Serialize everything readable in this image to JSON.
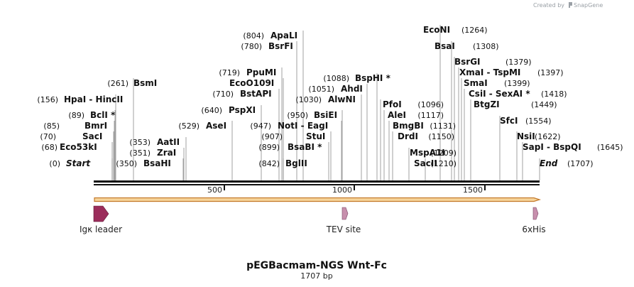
{
  "title": "pEGBacmam-NGS Wnt-Fc",
  "length_label": "1707 bp",
  "sequence_length": 1707,
  "watermark": {
    "prefix": "Created by",
    "brand": "SnapGene"
  },
  "axis_ticks": [
    "500",
    "1000",
    "1500"
  ],
  "colors": {
    "feature_signal": "#9b2d5b",
    "feature_site": "#c78fad",
    "orf_fill": "#f6d49a",
    "orf_stroke": "#c47a2c",
    "backbone": "#111111",
    "leader_line": "#8a8a8a"
  },
  "sites": [
    {
      "pos": "(0)",
      "name": "Start",
      "suffix": "",
      "kind": "end"
    },
    {
      "pos": "(68)",
      "name": "Eco53kI",
      "suffix": ""
    },
    {
      "pos": "(70)",
      "name": "SacI",
      "suffix": ""
    },
    {
      "pos": "(85)",
      "name": "BmrI",
      "suffix": ""
    },
    {
      "pos": "(89)",
      "name": "BclI",
      "suffix": " *"
    },
    {
      "pos": "(156)",
      "name": "HpaI",
      "suffix": " - HincII"
    },
    {
      "pos": "(261)",
      "name": "BsmI",
      "suffix": ""
    },
    {
      "pos": "(350)",
      "name": "BsaHI",
      "suffix": ""
    },
    {
      "pos": "(351)",
      "name": "ZraI",
      "suffix": ""
    },
    {
      "pos": "(353)",
      "name": "AatII",
      "suffix": ""
    },
    {
      "pos": "(529)",
      "name": "AseI",
      "suffix": ""
    },
    {
      "pos": "(640)",
      "name": "PspXI",
      "suffix": ""
    },
    {
      "pos": "(710)",
      "name": "BstAPI",
      "suffix": ""
    },
    {
      "pos": "(719)",
      "name": "PpuMI",
      "suffix": ""
    },
    {
      "pos": "",
      "name": "EcoO109I",
      "suffix": ""
    },
    {
      "pos": "(780)",
      "name": "BsrFI",
      "suffix": ""
    },
    {
      "pos": "(804)",
      "name": "ApaLI",
      "suffix": ""
    },
    {
      "pos": "(842)",
      "name": "BglII",
      "suffix": ""
    },
    {
      "pos": "(899)",
      "name": "BsaBI",
      "suffix": " *"
    },
    {
      "pos": "(907)",
      "name": "StuI",
      "suffix": ""
    },
    {
      "pos": "(947)",
      "name": "NotI",
      "suffix": " - EagI"
    },
    {
      "pos": "(950)",
      "name": "BsiEI",
      "suffix": ""
    },
    {
      "pos": "(1030)",
      "name": "AlwNI",
      "suffix": ""
    },
    {
      "pos": "(1051)",
      "name": "AhdI",
      "suffix": ""
    },
    {
      "pos": "(1088)",
      "name": "BspHI",
      "suffix": " *"
    },
    {
      "pos": "",
      "name": "PfoI",
      "suffix": ""
    },
    {
      "pos": "",
      "name": "AleI",
      "suffix": ""
    },
    {
      "pos": "",
      "name": "BmgBI",
      "suffix": ""
    },
    {
      "pos": "",
      "name": "DrdI",
      "suffix": ""
    },
    {
      "pos": "",
      "name": "MspA1I",
      "suffix": ""
    },
    {
      "pos": "",
      "name": "SacII",
      "suffix": ""
    },
    {
      "pos": "(1096)",
      "name": "",
      "suffix": ""
    },
    {
      "pos": "(1117)",
      "name": "",
      "suffix": ""
    },
    {
      "pos": "(1131)",
      "name": "",
      "suffix": ""
    },
    {
      "pos": "(1150)",
      "name": "",
      "suffix": ""
    },
    {
      "pos": "(1209)",
      "name": "",
      "suffix": ""
    },
    {
      "pos": "(1210)",
      "name": "",
      "suffix": ""
    },
    {
      "pos": "(1264)",
      "name": "EcoNI",
      "suffix": ""
    },
    {
      "pos": "(1308)",
      "name": "BsaI",
      "suffix": ""
    },
    {
      "pos": "(1379)",
      "name": "BsrGI",
      "suffix": ""
    },
    {
      "pos": "(1397)",
      "name": "XmaI",
      "suffix": " - TspMI"
    },
    {
      "pos": "(1399)",
      "name": "SmaI",
      "suffix": ""
    },
    {
      "pos": "(1418)",
      "name": "CsiI",
      "suffix": " - SexAI *"
    },
    {
      "pos": "(1449)",
      "name": "BtgZI",
      "suffix": ""
    },
    {
      "pos": "(1554)",
      "name": "SfcI",
      "suffix": ""
    },
    {
      "pos": "(1622)",
      "name": "NsiI",
      "suffix": ""
    },
    {
      "pos": "(1645)",
      "name": "SapI",
      "suffix": " - BspQI"
    },
    {
      "pos": "(1707)",
      "name": "End",
      "suffix": "",
      "kind": "end"
    }
  ],
  "features": [
    {
      "name": "Igκ leader",
      "type": "signal",
      "start": 1,
      "end": 60
    },
    {
      "name": "TEV site",
      "type": "site",
      "start": 956,
      "end": 976
    },
    {
      "name": "6xHis",
      "type": "site",
      "start": 1680,
      "end": 1697
    }
  ]
}
